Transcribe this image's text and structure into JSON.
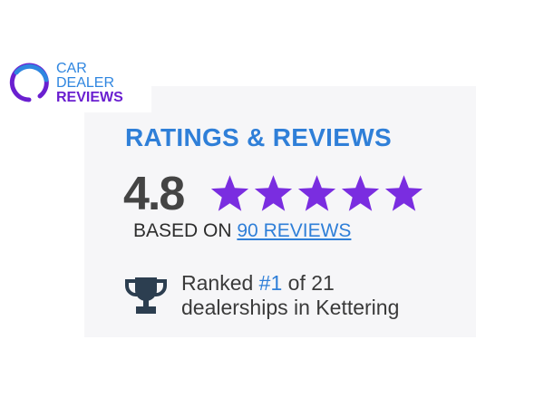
{
  "logo": {
    "line1": "CAR",
    "line2": "DEALER",
    "line3": "REVIEWS",
    "colors": {
      "blue": "#2f86e0",
      "purple": "#6a1fd0"
    }
  },
  "widget": {
    "title": "RATINGS & REVIEWS",
    "score": "4.8",
    "stars": 5,
    "star_color": "#7a2de0",
    "based_on_label": "BASED ON",
    "reviews_link": "90 REVIEWS",
    "rank_prefix": "Ranked",
    "rank_value": "#1",
    "rank_suffix": "of 21",
    "rank_line2": "dealerships in Kettering",
    "trophy_icon": "trophy-icon",
    "accent": "#2f7fd8"
  }
}
